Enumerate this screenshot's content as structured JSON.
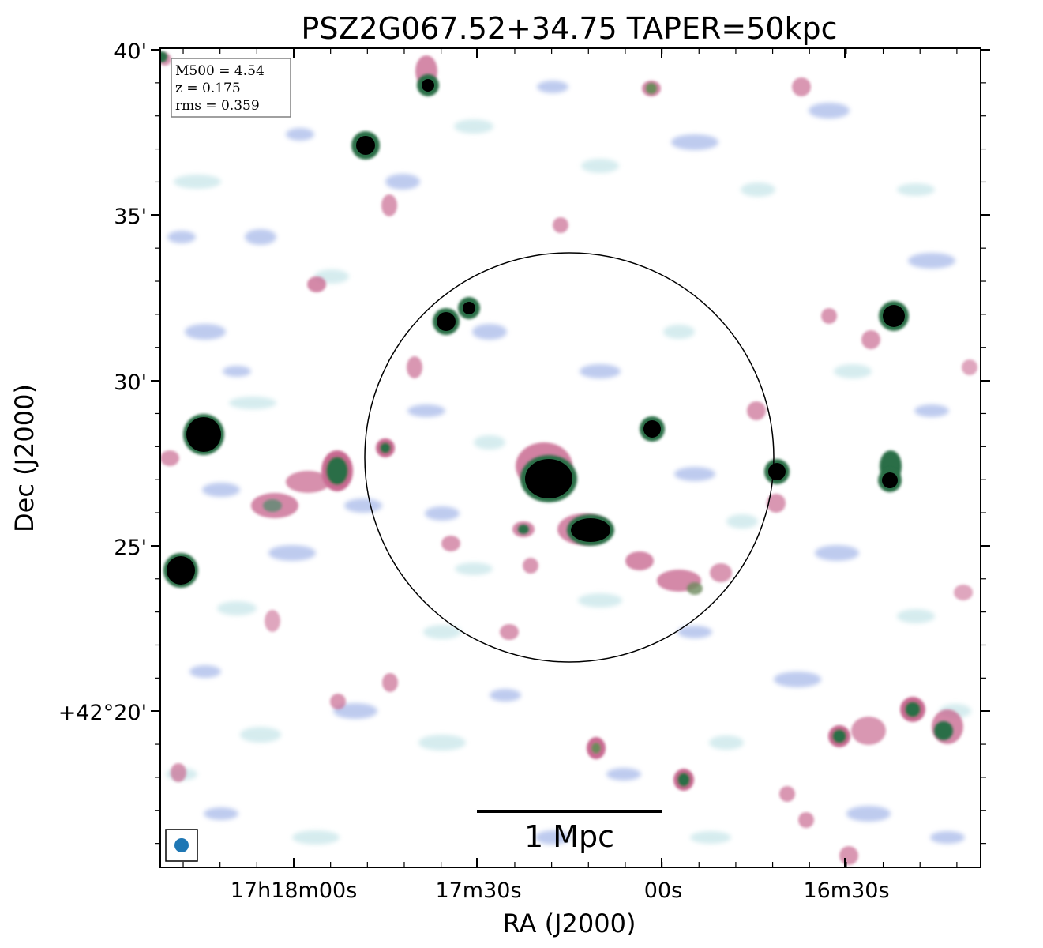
{
  "title": "PSZ2G067.52+34.75 TAPER=50kpc",
  "xlabel": "RA (J2000)",
  "ylabel": "Dec (J2000)",
  "x_ticks": [
    "17h18m00s",
    "17m30s",
    "00s",
    "16m30s"
  ],
  "y_ticks": [
    "40'",
    "35'",
    "30'",
    "25'",
    "+42°20'"
  ],
  "info_box": {
    "mass": "M500 = 4.54",
    "redshift": "z = 0.175",
    "rms": "rms = 0.359"
  },
  "scalebar_label": "1 Mpc",
  "colors": {
    "strong_source": "#000000",
    "bright_emission": "#2b6e47",
    "medium_emission": "#c96b92",
    "faint_emission": "#b3c2ec",
    "noise": "#cfe9ec",
    "beam": "#1f77b4"
  }
}
